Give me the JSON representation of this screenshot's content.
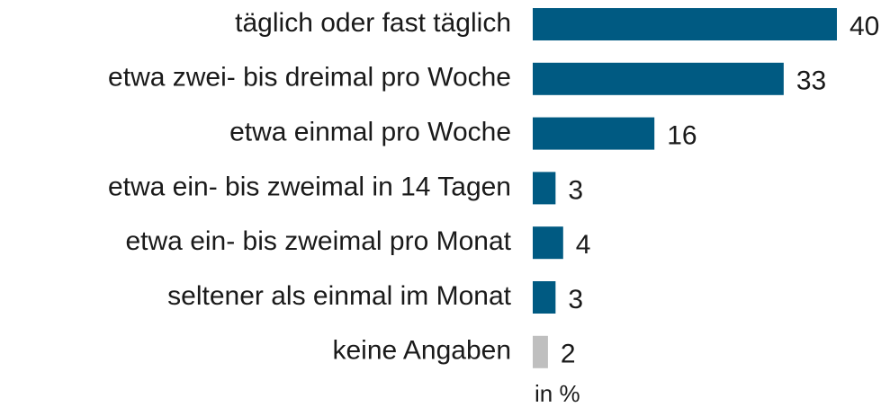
{
  "chart_data": {
    "type": "bar",
    "orientation": "horizontal",
    "categories": [
      "täglich oder fast täglich",
      "etwa zwei- bis dreimal pro Woche",
      "etwa einmal pro Woche",
      "etwa ein- bis zweimal in 14 Tagen",
      "etwa ein- bis zweimal pro Monat",
      "seltener als einmal im Monat",
      "keine Angaben"
    ],
    "values": [
      40,
      33,
      16,
      3,
      4,
      3,
      2
    ],
    "colors": [
      "#005a82",
      "#005a82",
      "#005a82",
      "#005a82",
      "#005a82",
      "#005a82",
      "#bfbfbf"
    ],
    "unit_label": "in %"
  }
}
